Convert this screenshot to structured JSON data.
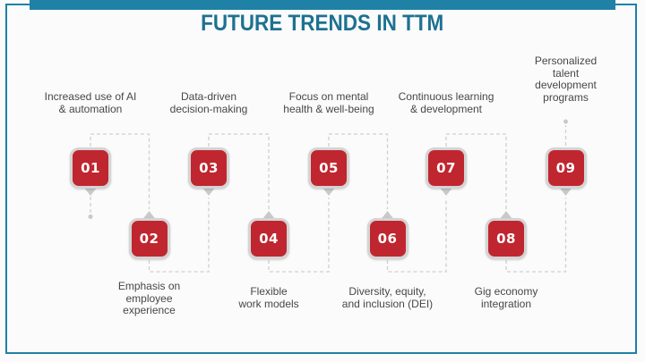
{
  "title": "FUTURE TRENDS IN TTM",
  "colors": {
    "accent_teal": "#1f81a6",
    "title_teal": "#1d7191",
    "box_red": "#c0262f",
    "box_border": "#d4d4d4",
    "connector": "#cfcfcf",
    "tail_gray": "#c9c9c9",
    "label_text": "#474747",
    "page_bg": "#fbfbfc"
  },
  "items": [
    {
      "number": "01",
      "label": "Increased use of AI & automation",
      "lines": [
        "Increased use of AI",
        "& automation"
      ],
      "row": "top"
    },
    {
      "number": "02",
      "label": "Emphasis on employee experience",
      "lines": [
        "Emphasis on",
        "employee",
        "experience"
      ],
      "row": "bottom"
    },
    {
      "number": "03",
      "label": "Data-driven decision-making",
      "lines": [
        "Data-driven",
        "decision-making"
      ],
      "row": "top"
    },
    {
      "number": "04",
      "label": "Flexible work models",
      "lines": [
        "Flexible",
        "work models"
      ],
      "row": "bottom"
    },
    {
      "number": "05",
      "label": "Focus on mental health & well-being",
      "lines": [
        "Focus on mental",
        "health & well-being"
      ],
      "row": "top"
    },
    {
      "number": "06",
      "label": "Diversity, equity, and inclusion (DEI)",
      "lines": [
        "Diversity, equity,",
        "and inclusion (DEI)"
      ],
      "row": "bottom"
    },
    {
      "number": "07",
      "label": "Continuous learning & development",
      "lines": [
        "Continuous learning",
        "& development"
      ],
      "row": "top"
    },
    {
      "number": "08",
      "label": "Gig economy integration",
      "lines": [
        "Gig economy",
        "integration"
      ],
      "row": "bottom"
    },
    {
      "number": "09",
      "label": "Personalized talent development programs",
      "lines": [
        "Personalized",
        "talent",
        "development",
        "programs"
      ],
      "row": "top"
    }
  ]
}
